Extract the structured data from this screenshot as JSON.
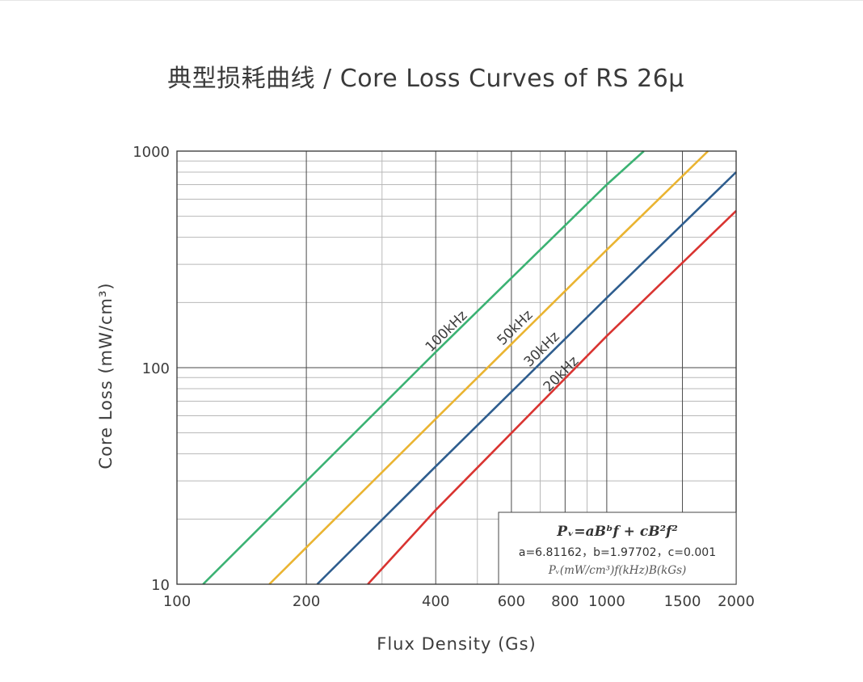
{
  "title": "典型损耗曲线 / Core Loss Curves of RS 26μ",
  "chart_data": {
    "type": "line",
    "xlabel": "Flux Density (Gs)",
    "ylabel": "Core Loss (mW/cm³)",
    "x_scale": "log",
    "y_scale": "log",
    "xlim": [
      100,
      2000
    ],
    "ylim": [
      10,
      1000
    ],
    "x_ticks": [
      100,
      200,
      400,
      600,
      800,
      1000,
      1500,
      2000
    ],
    "x_tick_labels": [
      "100",
      "200",
      "400",
      "600",
      "800",
      "1000",
      "1500",
      "2000"
    ],
    "y_ticks": [
      10,
      100,
      1000
    ],
    "y_tick_labels": [
      "10",
      "100",
      "1000"
    ],
    "grid": true,
    "series": [
      {
        "name": "100kHz",
        "f_khz": 100,
        "color": "#3bb273",
        "points": [
          [
            115,
            10
          ],
          [
            400,
            118
          ],
          [
            1000,
            700
          ],
          [
            1220,
            1000
          ]
        ]
      },
      {
        "name": "50kHz",
        "f_khz": 50,
        "color": "#eab431",
        "points": [
          [
            164,
            10
          ],
          [
            400,
            58
          ],
          [
            1000,
            350
          ],
          [
            1720,
            1000
          ]
        ]
      },
      {
        "name": "30kHz",
        "f_khz": 30,
        "color": "#2e5d8e",
        "points": [
          [
            212,
            10
          ],
          [
            400,
            35
          ],
          [
            1000,
            210
          ],
          [
            2000,
            800
          ]
        ]
      },
      {
        "name": "20kHz",
        "f_khz": 20,
        "color": "#d93431",
        "points": [
          [
            278,
            10
          ],
          [
            400,
            22
          ],
          [
            1000,
            140
          ],
          [
            2000,
            530
          ]
        ]
      }
    ]
  },
  "formula": {
    "line1": "Pᵥ=aBᵇf + cB²f²",
    "line2": "a=6.81162，b=1.97702，c=0.001",
    "line3": "Pᵥ(mW/cm³)f(kHz)B(kGs)"
  }
}
